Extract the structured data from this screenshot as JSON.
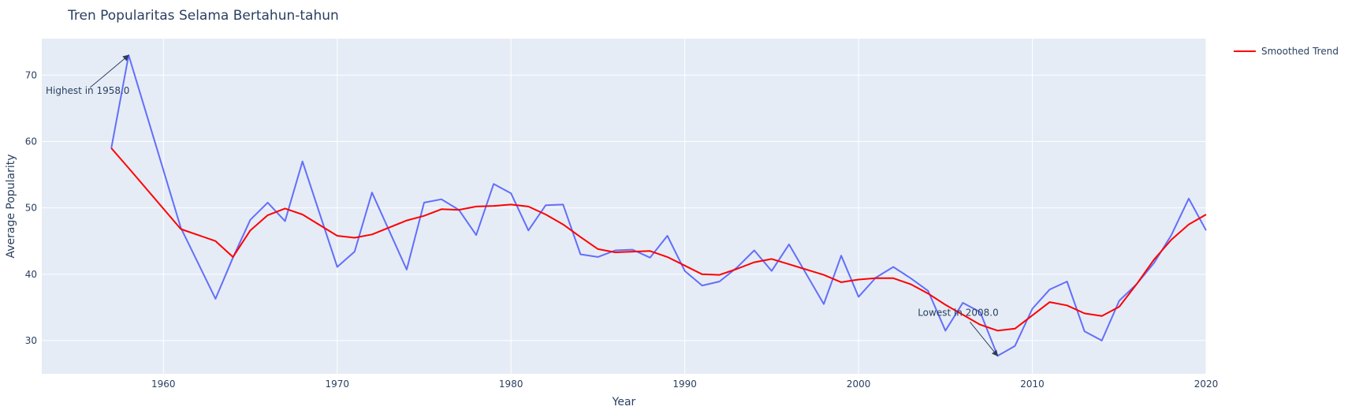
{
  "chart_data": {
    "type": "line",
    "title": "Tren Popularitas Selama Bertahun-tahun",
    "xlabel": "Year",
    "ylabel": "Average Popularity",
    "xlim": [
      1953,
      2020
    ],
    "ylim": [
      25,
      75.5
    ],
    "xticks": [
      1960,
      1970,
      1980,
      1990,
      2000,
      2010,
      2020
    ],
    "yticks": [
      30,
      40,
      50,
      60,
      70
    ],
    "grid": true,
    "legend_position": "top-right",
    "x": [
      1957,
      1958,
      1961,
      1963,
      1964,
      1965,
      1966,
      1967,
      1968,
      1970,
      1971,
      1972,
      1974,
      1975,
      1976,
      1977,
      1978,
      1979,
      1980,
      1981,
      1982,
      1983,
      1984,
      1985,
      1986,
      1987,
      1988,
      1989,
      1990,
      1991,
      1992,
      1993,
      1994,
      1995,
      1996,
      1998,
      1999,
      2000,
      2001,
      2002,
      2003,
      2004,
      2005,
      2006,
      2007,
      2008,
      2009,
      2010,
      2011,
      2012,
      2013,
      2014,
      2015,
      2016,
      2017,
      2018,
      2019,
      2020
    ],
    "series": [
      {
        "color": "#636efa",
        "values": [
          59.0,
          73.0,
          47.0,
          36.3,
          42.5,
          48.2,
          50.8,
          48.0,
          57.0,
          41.1,
          43.4,
          52.3,
          40.7,
          50.8,
          51.3,
          49.7,
          45.9,
          53.6,
          52.2,
          46.6,
          50.4,
          50.5,
          43.0,
          42.6,
          43.6,
          43.7,
          42.5,
          45.8,
          40.5,
          38.3,
          38.9,
          41.0,
          43.6,
          40.5,
          44.5,
          35.5,
          42.8,
          36.6,
          39.5,
          41.1,
          39.4,
          37.5,
          31.5,
          35.7,
          34.3,
          27.7,
          29.2,
          34.8,
          37.7,
          38.9,
          31.4,
          30.0,
          36.0,
          38.5,
          41.7,
          45.9,
          51.4,
          46.6
        ]
      },
      {
        "name": "Smoothed Trend",
        "color": "#ff0000",
        "values": [
          59.0,
          56.0,
          46.8,
          45.0,
          42.6,
          46.6,
          48.9,
          49.9,
          49.0,
          45.8,
          45.5,
          46.0,
          48.1,
          48.8,
          49.8,
          49.7,
          50.2,
          50.3,
          50.5,
          50.2,
          49.0,
          47.5,
          45.6,
          43.8,
          43.3,
          43.4,
          43.5,
          42.6,
          41.3,
          40.0,
          39.9,
          40.8,
          41.8,
          42.3,
          41.5,
          39.9,
          38.8,
          39.2,
          39.4,
          39.4,
          38.5,
          37.1,
          35.4,
          33.9,
          32.4,
          31.5,
          31.8,
          33.8,
          35.8,
          35.3,
          34.1,
          33.7,
          35.1,
          38.5,
          42.2,
          45.2,
          47.5,
          49.0
        ]
      }
    ],
    "annotations": [
      {
        "text": "Highest in 1958.0",
        "x": 1958,
        "y": 73.0
      },
      {
        "text": "Lowest in 2008.0",
        "x": 2008,
        "y": 27.7
      }
    ]
  }
}
